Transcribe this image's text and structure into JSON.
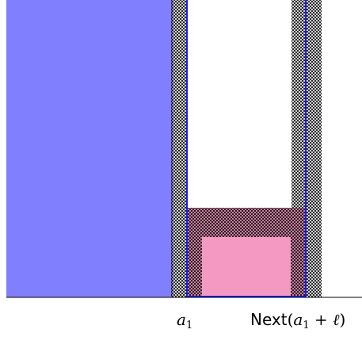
{
  "labels": {
    "a1": {
      "base": "a",
      "sub": "1"
    },
    "next": {
      "func": "Next",
      "open": "(",
      "arg_base": "a",
      "arg_sub": "1",
      "plus": " + ",
      "ell": "ℓ",
      "close": ")"
    }
  },
  "colors": {
    "blue_fill": "#8080ff",
    "pink_fill": "#f49ac2",
    "outline": "#1a1aff",
    "hatch": "#000000",
    "axis": "#000000"
  }
}
